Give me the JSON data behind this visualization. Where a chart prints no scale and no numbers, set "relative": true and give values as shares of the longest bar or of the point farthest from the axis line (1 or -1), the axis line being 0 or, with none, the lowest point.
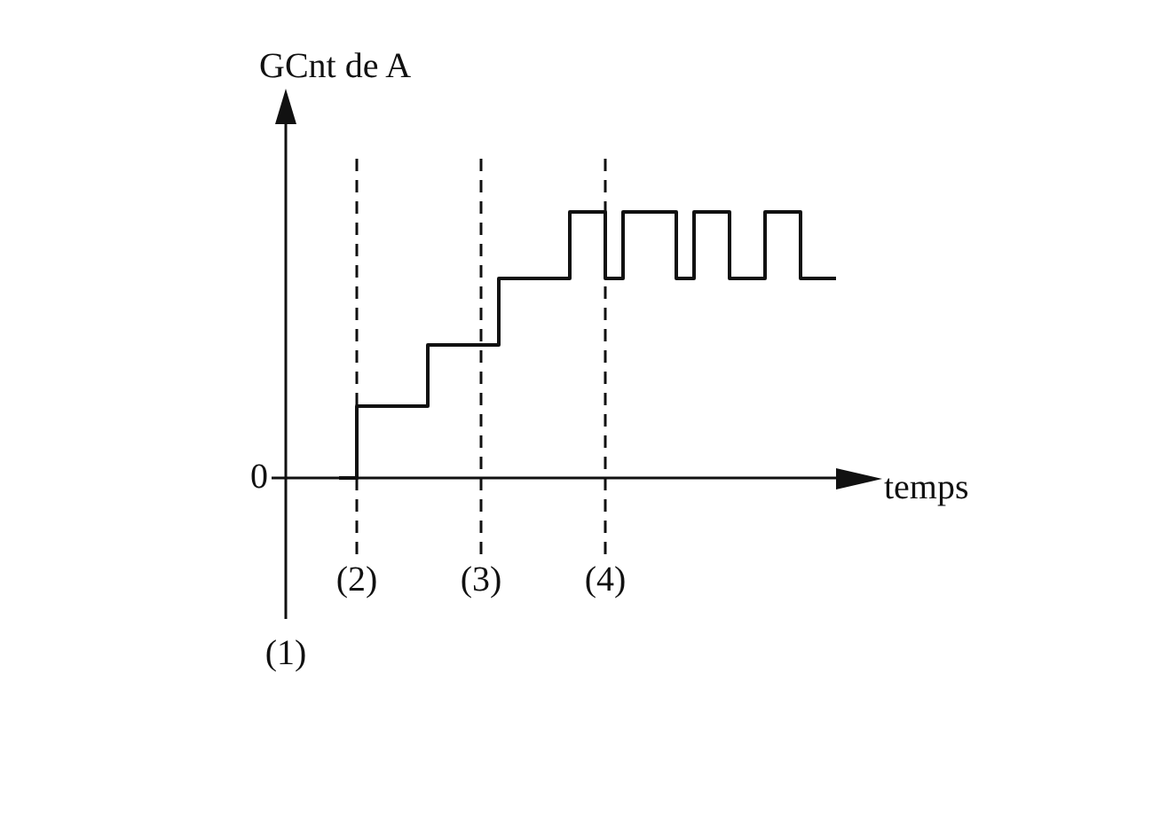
{
  "chart_data": {
    "type": "step",
    "relative": true,
    "ylabel": "GCnt de A",
    "xlabel": "temps",
    "annotations": [
      "0",
      "(1)"
    ],
    "categories": [
      null,
      null,
      null,
      null,
      "(2)",
      null,
      null,
      null,
      null,
      null,
      null,
      "(3)",
      null,
      null,
      null,
      null,
      null,
      null,
      "(4)",
      null,
      null,
      null,
      null,
      null,
      null,
      null,
      null,
      null,
      null,
      null,
      null,
      null
    ],
    "series": [
      {
        "color": "#111111",
        "values": [
          null,
          null,
          null,
          0,
          0.27,
          0.27,
          0.27,
          0.27,
          0.5,
          0.5,
          0.5,
          0.5,
          0.75,
          0.75,
          0.75,
          0.75,
          1,
          1,
          0.75,
          1,
          1,
          1,
          0.75,
          1,
          1,
          0.75,
          0.75,
          1,
          1,
          0.75,
          0.75,
          0.75
        ]
      }
    ],
    "ref_lines": [
      {
        "axis": "x",
        "value": "(2)",
        "line_style": "dashed"
      },
      {
        "axis": "x",
        "value": "(3)",
        "line_style": "dashed"
      },
      {
        "axis": "x",
        "value": "(4)",
        "line_style": "dashed"
      }
    ],
    "legend": false
  }
}
